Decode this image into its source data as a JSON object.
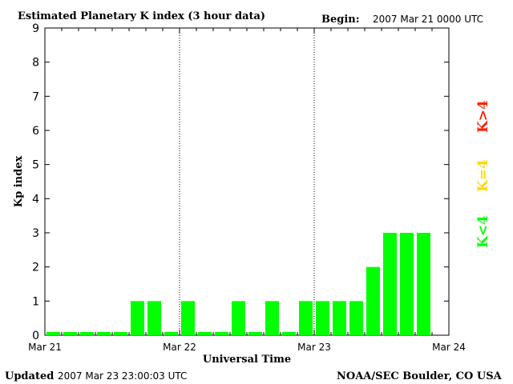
{
  "header": {
    "title": "Estimated Planetary K index (3 hour data)",
    "begin_label": "Begin:",
    "begin_value": "2007 Mar 21 0000 UTC"
  },
  "footer": {
    "updated_label": "Updated",
    "updated_value": "2007 Mar 23 23:00:03 UTC",
    "credit": "NOAA/SEC Boulder, CO USA"
  },
  "legend": [
    {
      "label": "K<4",
      "color": "#00ff00"
    },
    {
      "label": "K=4",
      "color": "#ffd700"
    },
    {
      "label": "K>4",
      "color": "#ff2000"
    }
  ],
  "chart_data": {
    "type": "bar",
    "title": "Estimated Planetary K index (3 hour data)",
    "xlabel": "Universal Time",
    "ylabel": "Kp index",
    "ylim": [
      0,
      9
    ],
    "yticks": [
      0,
      1,
      2,
      3,
      4,
      5,
      6,
      7,
      8,
      9
    ],
    "xticks": [
      "Mar 21",
      "Mar 22",
      "Mar 23",
      "Mar 24"
    ],
    "bins_per_day": 8,
    "day_separators": true,
    "legend_position": "right",
    "values": [
      0,
      0,
      0,
      0,
      0,
      1,
      1,
      0,
      1,
      0,
      0,
      1,
      0,
      1,
      0,
      1,
      1,
      1,
      1,
      2,
      3,
      3,
      3
    ]
  }
}
